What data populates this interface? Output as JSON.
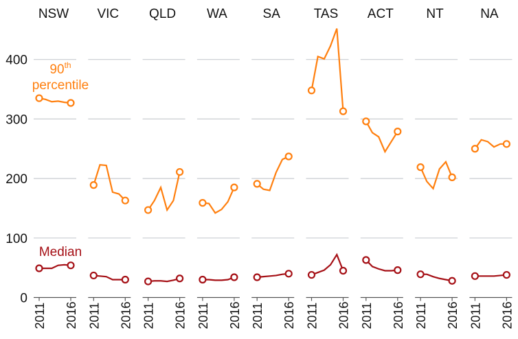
{
  "chart_data": {
    "type": "line",
    "title": "",
    "xlabel": "",
    "ylabel": "",
    "ylim": [
      0,
      460
    ],
    "yticks": [
      "0",
      "100",
      "200",
      "300",
      "400"
    ],
    "ytick_values": [
      0,
      100,
      200,
      300,
      400
    ],
    "x": [
      2011,
      2012,
      2013,
      2014,
      2015,
      2016
    ],
    "xtick_labels": [
      "2011",
      "2016"
    ],
    "grid": true,
    "annotations": {
      "p90_main": "90",
      "p90_sup": "th",
      "p90_line2": "percentile",
      "median": "Median"
    },
    "colors": {
      "p90": "#ff7f0e",
      "median": "#a50f15",
      "grid": "#c8ccd0"
    },
    "panels": [
      {
        "name": "NSW",
        "p90": [
          335,
          333,
          329,
          330,
          328,
          327
        ],
        "median": [
          49,
          49,
          49,
          54,
          55,
          54
        ]
      },
      {
        "name": "VIC",
        "p90": [
          189,
          223,
          222,
          177,
          174,
          163
        ],
        "median": [
          37,
          36,
          35,
          30,
          30,
          30
        ]
      },
      {
        "name": "QLD",
        "p90": [
          147,
          163,
          185,
          147,
          163,
          211
        ],
        "median": [
          27,
          28,
          28,
          27,
          29,
          32
        ]
      },
      {
        "name": "WA",
        "p90": [
          159,
          158,
          142,
          148,
          161,
          185
        ],
        "median": [
          30,
          30,
          29,
          29,
          30,
          34
        ]
      },
      {
        "name": "SA",
        "p90": [
          191,
          182,
          180,
          210,
          232,
          237
        ],
        "median": [
          34,
          35,
          36,
          37,
          39,
          40
        ]
      },
      {
        "name": "TAS",
        "p90": [
          348,
          405,
          401,
          423,
          452,
          313
        ],
        "median": [
          38,
          42,
          46,
          55,
          72,
          45
        ]
      },
      {
        "name": "ACT",
        "p90": [
          296,
          277,
          270,
          245,
          262,
          279
        ],
        "median": [
          63,
          52,
          48,
          45,
          45,
          46
        ]
      },
      {
        "name": "NT",
        "p90": [
          219,
          195,
          183,
          216,
          228,
          202
        ],
        "median": [
          39,
          39,
          35,
          32,
          30,
          28
        ]
      },
      {
        "name": "NA",
        "p90": [
          250,
          265,
          262,
          253,
          258,
          258
        ],
        "median": [
          36,
          36,
          36,
          36,
          37,
          38
        ]
      }
    ]
  }
}
